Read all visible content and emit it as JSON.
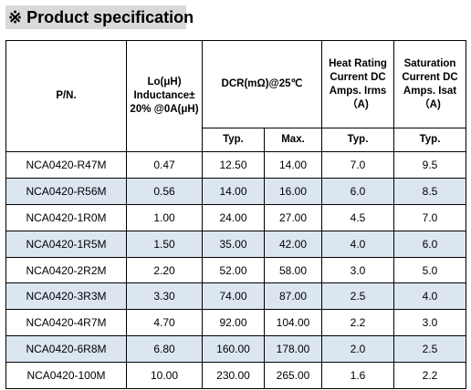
{
  "title": "※  Product specification",
  "headers": {
    "pn": "P/N.",
    "lo": "Lo(μH) Inductance± 20% @0A(μH)",
    "dcr": "DCR(mΩ)@25℃",
    "heat": "Heat Rating Current DC Amps. Irms（A)",
    "sat": "Saturation Current DC Amps. Isat（A)",
    "typ1": "Typ.",
    "max": "Max.",
    "typ2": "Typ.",
    "typ3": "Typ."
  },
  "rows": [
    {
      "pn": "NCA0420-R47M",
      "lo": "0.47",
      "dcr_typ": "12.50",
      "dcr_max": "14.00",
      "irms": "7.0",
      "isat": "9.5"
    },
    {
      "pn": "NCA0420-R56M",
      "lo": "0.56",
      "dcr_typ": "14.00",
      "dcr_max": "16.00",
      "irms": "6.0",
      "isat": "8.5"
    },
    {
      "pn": "NCA0420-1R0M",
      "lo": "1.00",
      "dcr_typ": "24.00",
      "dcr_max": "27.00",
      "irms": "4.5",
      "isat": "7.0"
    },
    {
      "pn": "NCA0420-1R5M",
      "lo": "1.50",
      "dcr_typ": "35.00",
      "dcr_max": "42.00",
      "irms": "4.0",
      "isat": "6.0"
    },
    {
      "pn": "NCA0420-2R2M",
      "lo": "2.20",
      "dcr_typ": "52.00",
      "dcr_max": "58.00",
      "irms": "3.0",
      "isat": "5.0"
    },
    {
      "pn": "NCA0420-3R3M",
      "lo": "3.30",
      "dcr_typ": "74.00",
      "dcr_max": "87.00",
      "irms": "2.5",
      "isat": "4.0"
    },
    {
      "pn": "NCA0420-4R7M",
      "lo": "4.70",
      "dcr_typ": "92.00",
      "dcr_max": "104.00",
      "irms": "2.2",
      "isat": "3.0"
    },
    {
      "pn": "NCA0420-6R8M",
      "lo": "6.80",
      "dcr_typ": "160.00",
      "dcr_max": "178.00",
      "irms": "2.0",
      "isat": "2.5"
    },
    {
      "pn": "NCA0420-100M",
      "lo": "10.00",
      "dcr_typ": "230.00",
      "dcr_max": "265.00",
      "irms": "1.6",
      "isat": "2.2"
    }
  ],
  "colors": {
    "title_bg": "#d9d9d9",
    "shaded_row": "#dce6f1"
  }
}
